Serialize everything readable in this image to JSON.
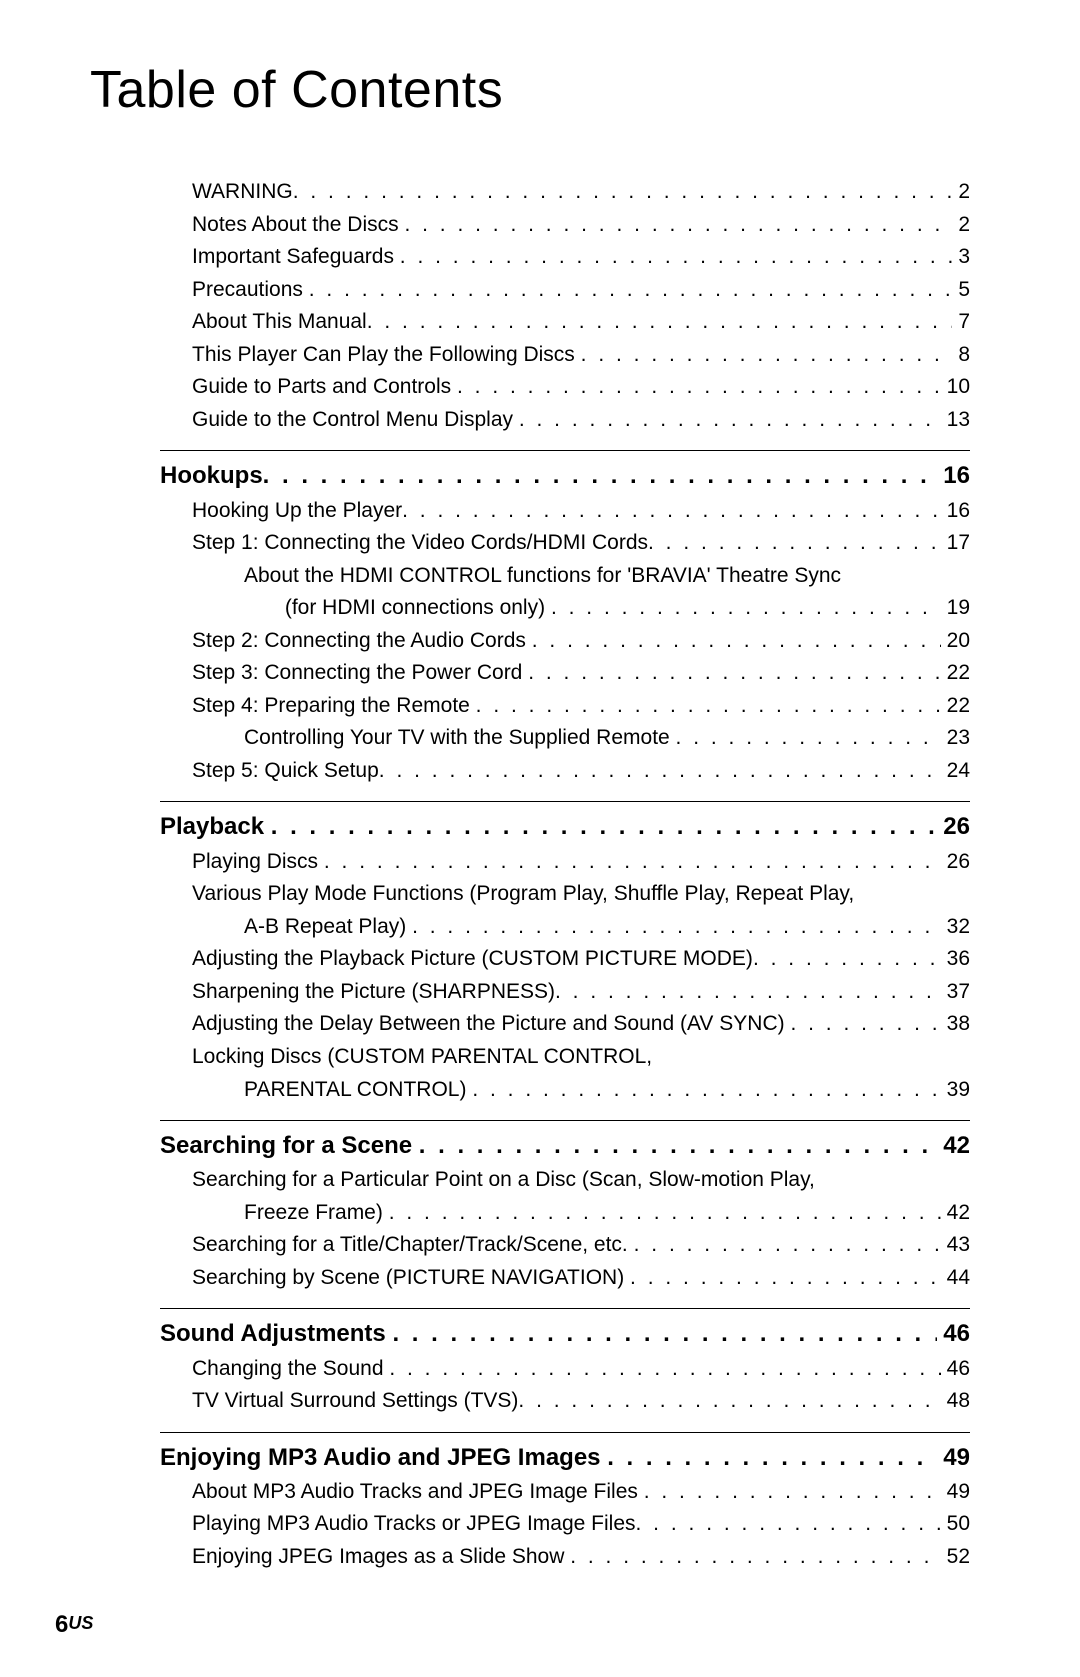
{
  "title": "Table of Contents",
  "footer_page": "6",
  "footer_region": "US",
  "blocks": [
    {
      "rows": [
        {
          "type": "entry",
          "indent": 1,
          "label": "WARNING",
          "page": "2"
        },
        {
          "type": "entry",
          "indent": 1,
          "label": "Notes About the Discs ",
          "page": "2"
        },
        {
          "type": "entry",
          "indent": 1,
          "label": "Important Safeguards ",
          "page": "3"
        },
        {
          "type": "entry",
          "indent": 1,
          "label": "Precautions ",
          "page": "5"
        },
        {
          "type": "entry",
          "indent": 1,
          "label": "About This Manual",
          "page": "7"
        },
        {
          "type": "entry",
          "indent": 1,
          "label": "This Player Can Play the Following Discs ",
          "page": "8"
        },
        {
          "type": "entry",
          "indent": 1,
          "label": "Guide to Parts and Controls ",
          "page": "10"
        },
        {
          "type": "entry",
          "indent": 1,
          "label": "Guide to the Control Menu Display ",
          "page": "13"
        }
      ]
    },
    {
      "section": {
        "label": "Hookups",
        "page": "16"
      },
      "rows": [
        {
          "type": "entry",
          "indent": 1,
          "label": "Hooking Up the Player",
          "page": "16"
        },
        {
          "type": "entry",
          "indent": 1,
          "label": "Step 1: Connecting the Video Cords/HDMI Cords",
          "page": "17"
        },
        {
          "type": "cont",
          "indent": 2,
          "text": "About the HDMI CONTROL functions for 'BRAVIA' Theatre Sync"
        },
        {
          "type": "entry",
          "indent": 2,
          "label": "       (for HDMI connections only) ",
          "page": "19"
        },
        {
          "type": "entry",
          "indent": 1,
          "label": "Step 2: Connecting the Audio Cords ",
          "page": "20"
        },
        {
          "type": "entry",
          "indent": 1,
          "label": "Step 3: Connecting the Power Cord ",
          "page": "22"
        },
        {
          "type": "entry",
          "indent": 1,
          "label": "Step 4: Preparing the Remote ",
          "page": "22"
        },
        {
          "type": "entry",
          "indent": 2,
          "label": "Controlling Your TV with the Supplied Remote ",
          "page": "23"
        },
        {
          "type": "entry",
          "indent": 1,
          "label": "Step 5: Quick Setup",
          "page": "24"
        }
      ]
    },
    {
      "section": {
        "label": "Playback ",
        "page": "26"
      },
      "rows": [
        {
          "type": "entry",
          "indent": 1,
          "label": "Playing Discs ",
          "page": "26"
        },
        {
          "type": "cont",
          "indent": 1,
          "text": "Various Play Mode Functions (Program Play, Shuffle Play, Repeat Play,"
        },
        {
          "type": "entry",
          "indent": 2,
          "label": "A-B Repeat Play) ",
          "page": "32"
        },
        {
          "type": "entry",
          "indent": 1,
          "label": "Adjusting the Playback Picture (CUSTOM PICTURE MODE)",
          "page": "36"
        },
        {
          "type": "entry",
          "indent": 1,
          "label": "Sharpening the Picture (SHARPNESS)",
          "page": "37"
        },
        {
          "type": "entry",
          "indent": 1,
          "label": "Adjusting the Delay Between the Picture and Sound (AV SYNC) ",
          "page": "38"
        },
        {
          "type": "cont",
          "indent": 1,
          "text": "Locking Discs (CUSTOM PARENTAL CONTROL,"
        },
        {
          "type": "entry",
          "indent": 2,
          "label": "PARENTAL CONTROL) ",
          "page": "39"
        }
      ]
    },
    {
      "section": {
        "label": "Searching for a Scene ",
        "page": "42"
      },
      "rows": [
        {
          "type": "cont",
          "indent": 1,
          "text": "Searching for a Particular Point on a Disc (Scan, Slow-motion Play,"
        },
        {
          "type": "entry",
          "indent": 2,
          "label": "Freeze Frame) ",
          "page": "42"
        },
        {
          "type": "entry",
          "indent": 1,
          "label": "Searching for a Title/Chapter/Track/Scene, etc. ",
          "page": "43"
        },
        {
          "type": "entry",
          "indent": 1,
          "label": "Searching by Scene (PICTURE NAVIGATION) ",
          "page": "44"
        }
      ]
    },
    {
      "section": {
        "label": "Sound Adjustments ",
        "page": "46"
      },
      "rows": [
        {
          "type": "entry",
          "indent": 1,
          "label": "Changing the Sound ",
          "page": "46"
        },
        {
          "type": "entry",
          "indent": 1,
          "label": "TV Virtual Surround Settings (TVS)",
          "page": "48"
        }
      ]
    },
    {
      "section": {
        "label": "Enjoying MP3 Audio and JPEG Images ",
        "page": "49"
      },
      "rows": [
        {
          "type": "entry",
          "indent": 1,
          "label": "About MP3 Audio Tracks and JPEG Image Files ",
          "page": "49"
        },
        {
          "type": "entry",
          "indent": 1,
          "label": "Playing MP3 Audio Tracks or JPEG Image Files",
          "page": "50"
        },
        {
          "type": "entry",
          "indent": 1,
          "label": "Enjoying JPEG Images as a Slide Show ",
          "page": "52"
        }
      ]
    }
  ]
}
